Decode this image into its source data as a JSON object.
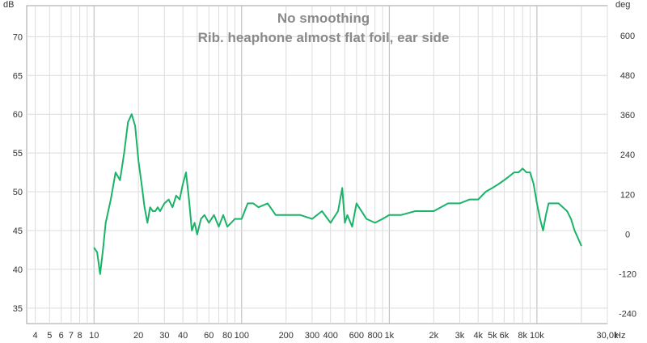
{
  "chart_data": {
    "type": "line",
    "title": "No smoothing",
    "subtitle": "Rib. heaphone almost flat foil, ear side",
    "y_unit_left": "dB",
    "y_unit_right": "deg",
    "x_unit": "Hz",
    "x_scale": "log",
    "xlim": [
      3.5,
      30000
    ],
    "ylim": [
      33,
      74
    ],
    "y2lim": [
      -270,
      690
    ],
    "grid": true,
    "x_tick_labels": [
      {
        "v": 4,
        "t": "4"
      },
      {
        "v": 5,
        "t": "5"
      },
      {
        "v": 6,
        "t": "6"
      },
      {
        "v": 7,
        "t": "7"
      },
      {
        "v": 8,
        "t": "8"
      },
      {
        "v": 10,
        "t": "10"
      },
      {
        "v": 20,
        "t": "20"
      },
      {
        "v": 30,
        "t": "30"
      },
      {
        "v": 40,
        "t": "40"
      },
      {
        "v": 60,
        "t": "60"
      },
      {
        "v": 80,
        "t": "80"
      },
      {
        "v": 100,
        "t": "100"
      },
      {
        "v": 200,
        "t": "200"
      },
      {
        "v": 300,
        "t": "300"
      },
      {
        "v": 400,
        "t": "400"
      },
      {
        "v": 600,
        "t": "600"
      },
      {
        "v": 800,
        "t": "800"
      },
      {
        "v": 1000,
        "t": "1k"
      },
      {
        "v": 2000,
        "t": "2k"
      },
      {
        "v": 3000,
        "t": "3k"
      },
      {
        "v": 4000,
        "t": "4k"
      },
      {
        "v": 5000,
        "t": "5k"
      },
      {
        "v": 6000,
        "t": "6k"
      },
      {
        "v": 8000,
        "t": "8k"
      },
      {
        "v": 10000,
        "t": "10k"
      },
      {
        "v": 30000,
        "t": "30,0k"
      }
    ],
    "y_ticks": [
      35,
      40,
      45,
      50,
      55,
      60,
      65,
      70
    ],
    "y2_ticks": [
      -240,
      -120,
      0,
      120,
      240,
      360,
      480,
      600
    ],
    "series": [
      {
        "color": "#1ab368",
        "x": [
          10,
          10.5,
          11,
          11.5,
          12,
          13,
          14,
          15,
          16,
          17,
          18,
          19,
          20,
          21,
          22,
          23,
          24,
          25,
          26,
          27,
          28,
          29,
          30,
          32,
          34,
          36,
          38,
          40,
          42,
          44,
          46,
          48,
          50,
          53,
          56,
          60,
          65,
          70,
          75,
          80,
          85,
          90,
          100,
          110,
          120,
          130,
          150,
          170,
          200,
          250,
          300,
          350,
          400,
          450,
          480,
          500,
          520,
          560,
          600,
          700,
          800,
          900,
          1000,
          1200,
          1500,
          1800,
          2000,
          2500,
          3000,
          3500,
          4000,
          4500,
          5000,
          5500,
          6000,
          6500,
          7000,
          7500,
          8000,
          8500,
          9000,
          9500,
          10000,
          10500,
          11000,
          11500,
          12000,
          13000,
          14000,
          15000,
          16000,
          17000,
          18000,
          19000,
          20000
        ],
        "y": [
          42.8,
          42.2,
          39.4,
          42.5,
          46,
          49,
          52.5,
          51.5,
          55,
          59,
          60,
          58.5,
          54,
          51,
          48,
          46,
          48,
          47.5,
          47.5,
          48,
          47.5,
          48,
          48.5,
          49,
          48,
          49.5,
          49,
          51,
          52.5,
          49,
          45,
          46,
          44.5,
          46.5,
          47,
          46,
          47,
          45.5,
          47,
          45.5,
          46,
          46.5,
          46.5,
          48.5,
          48.5,
          48,
          48.5,
          47,
          47,
          47,
          46.5,
          47.5,
          46,
          47.5,
          50.5,
          46,
          47,
          45.5,
          48.5,
          46.5,
          46,
          46.5,
          47,
          47,
          47.5,
          47.5,
          47.5,
          48.5,
          48.5,
          49,
          49,
          50,
          50.5,
          51,
          51.5,
          52,
          52.5,
          52.5,
          53,
          52.5,
          52.5,
          51,
          48.5,
          46.5,
          45,
          47,
          48.5,
          48.5,
          48.5,
          48,
          47.5,
          46.5,
          45,
          44,
          43
        ]
      }
    ]
  }
}
